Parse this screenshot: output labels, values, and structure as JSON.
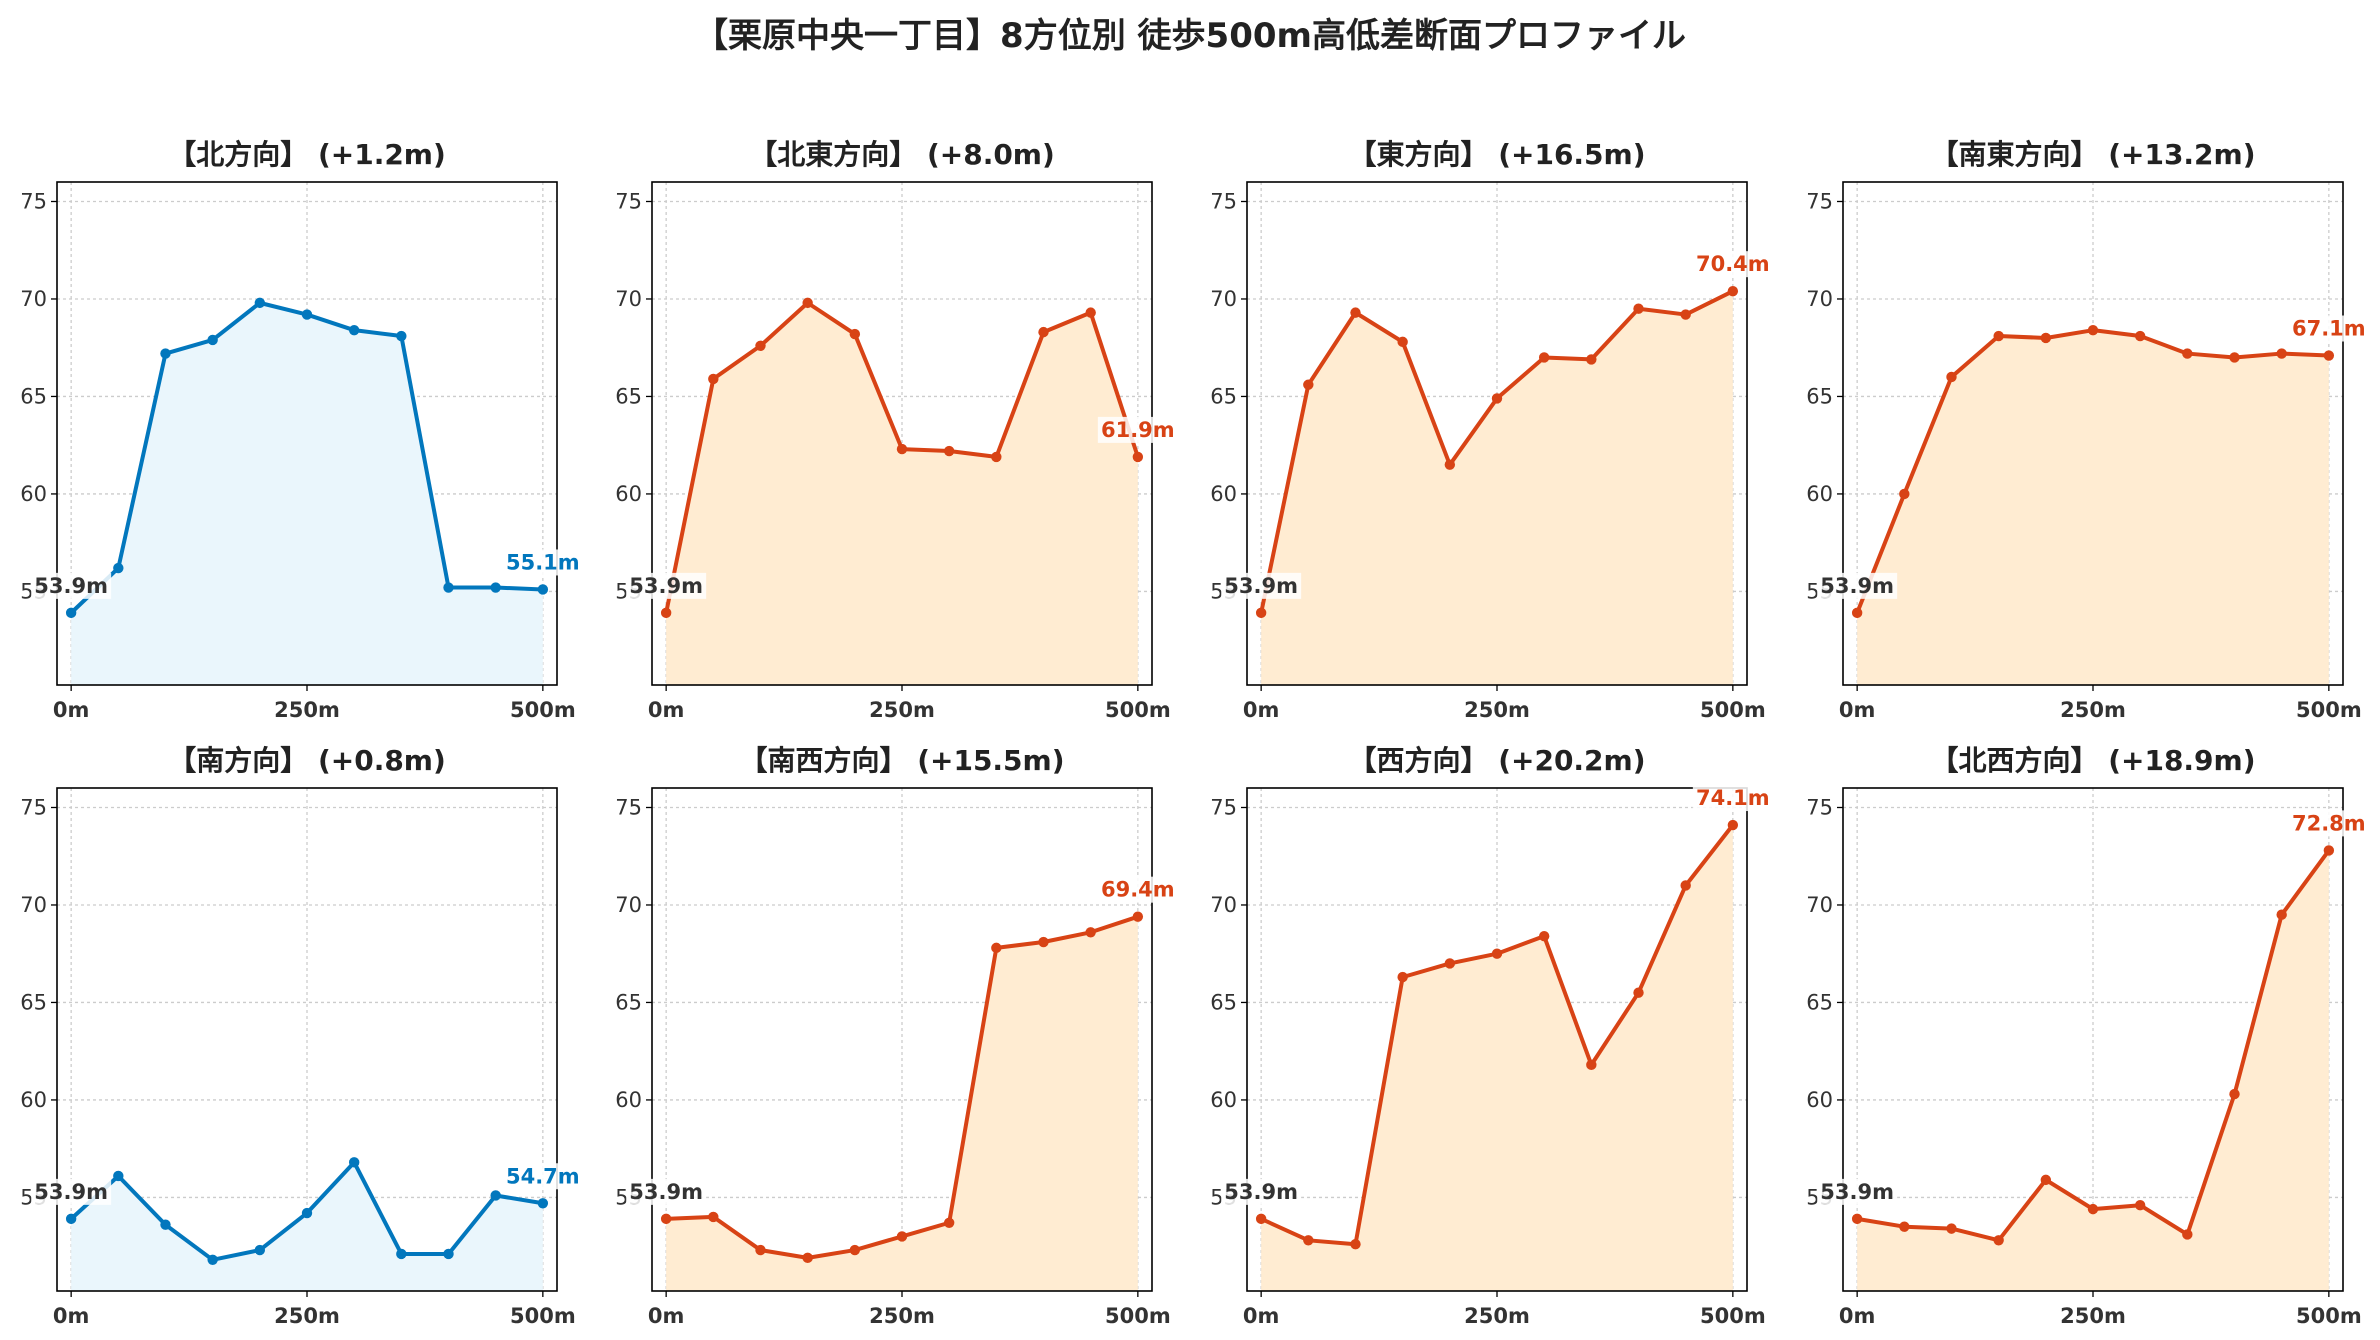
{
  "title": "【栗原中央一丁目】8方位別 徒歩500m高低差断面プロファイル",
  "colors": {
    "up": "#d84315",
    "up_fill": "#ffecd2",
    "flat": "#0277bd",
    "flat_fill": "#eaf6fc",
    "start": "#333333"
  },
  "chart_data": [
    {
      "type": "area",
      "title": "【北方向】 (+1.2m)",
      "color_key": "flat",
      "x": [
        0,
        50,
        100,
        150,
        200,
        250,
        300,
        350,
        400,
        450,
        500
      ],
      "y": [
        53.9,
        56.2,
        67.2,
        67.9,
        69.8,
        69.2,
        68.4,
        68.1,
        55.2,
        55.2,
        55.1
      ],
      "start_label": "53.9m",
      "end_label": "55.1m",
      "xticks": [
        "0m",
        "250m",
        "500m"
      ],
      "yticks": [
        55,
        60,
        65,
        70,
        75
      ],
      "ylim": [
        50.2,
        76
      ],
      "xlim": [
        -15,
        515
      ],
      "grid": true
    },
    {
      "type": "area",
      "title": "【北東方向】 (+8.0m)",
      "color_key": "up",
      "x": [
        0,
        50,
        100,
        150,
        200,
        250,
        300,
        350,
        400,
        450,
        500
      ],
      "y": [
        53.9,
        65.9,
        67.6,
        69.8,
        68.2,
        62.3,
        62.2,
        61.9,
        68.3,
        69.3,
        61.9
      ],
      "start_label": "53.9m",
      "end_label": "61.9m",
      "xticks": [
        "0m",
        "250m",
        "500m"
      ],
      "yticks": [
        55,
        60,
        65,
        70,
        75
      ],
      "ylim": [
        50.2,
        76
      ],
      "xlim": [
        -15,
        515
      ],
      "grid": true
    },
    {
      "type": "area",
      "title": "【東方向】 (+16.5m)",
      "color_key": "up",
      "x": [
        0,
        50,
        100,
        150,
        200,
        250,
        300,
        350,
        400,
        450,
        500
      ],
      "y": [
        53.9,
        65.6,
        69.3,
        67.8,
        61.5,
        64.9,
        67.0,
        66.9,
        69.5,
        69.2,
        70.4
      ],
      "start_label": "53.9m",
      "end_label": "70.4m",
      "xticks": [
        "0m",
        "250m",
        "500m"
      ],
      "yticks": [
        55,
        60,
        65,
        70,
        75
      ],
      "ylim": [
        50.2,
        76
      ],
      "xlim": [
        -15,
        515
      ],
      "grid": true
    },
    {
      "type": "area",
      "title": "【南東方向】 (+13.2m)",
      "color_key": "up",
      "x": [
        0,
        50,
        100,
        150,
        200,
        250,
        300,
        350,
        400,
        450,
        500
      ],
      "y": [
        53.9,
        60.0,
        66.0,
        68.1,
        68.0,
        68.4,
        68.1,
        67.2,
        67.0,
        67.2,
        67.1
      ],
      "start_label": "53.9m",
      "end_label": "67.1m",
      "xticks": [
        "0m",
        "250m",
        "500m"
      ],
      "yticks": [
        55,
        60,
        65,
        70,
        75
      ],
      "ylim": [
        50.2,
        76
      ],
      "xlim": [
        -15,
        515
      ],
      "grid": true
    },
    {
      "type": "area",
      "title": "【南方向】 (+0.8m)",
      "color_key": "flat",
      "x": [
        0,
        50,
        100,
        150,
        200,
        250,
        300,
        350,
        400,
        450,
        500
      ],
      "y": [
        53.9,
        56.1,
        53.6,
        51.8,
        52.3,
        54.2,
        56.8,
        52.1,
        52.1,
        55.1,
        54.7
      ],
      "start_label": "53.9m",
      "end_label": "54.7m",
      "xticks": [
        "0m",
        "250m",
        "500m"
      ],
      "yticks": [
        55,
        60,
        65,
        70,
        75
      ],
      "ylim": [
        50.2,
        76
      ],
      "xlim": [
        -15,
        515
      ],
      "grid": true
    },
    {
      "type": "area",
      "title": "【南西方向】 (+15.5m)",
      "color_key": "up",
      "x": [
        0,
        50,
        100,
        150,
        200,
        250,
        300,
        350,
        400,
        450,
        500
      ],
      "y": [
        53.9,
        54.0,
        52.3,
        51.9,
        52.3,
        53.0,
        53.7,
        67.8,
        68.1,
        68.6,
        69.4
      ],
      "start_label": "53.9m",
      "end_label": "69.4m",
      "xticks": [
        "0m",
        "250m",
        "500m"
      ],
      "yticks": [
        55,
        60,
        65,
        70,
        75
      ],
      "ylim": [
        50.2,
        76
      ],
      "xlim": [
        -15,
        515
      ],
      "grid": true
    },
    {
      "type": "area",
      "title": "【西方向】 (+20.2m)",
      "color_key": "up",
      "x": [
        0,
        50,
        100,
        150,
        200,
        250,
        300,
        350,
        400,
        450,
        500
      ],
      "y": [
        53.9,
        52.8,
        52.6,
        66.3,
        67.0,
        67.5,
        68.4,
        61.8,
        65.5,
        71.0,
        74.1
      ],
      "start_label": "53.9m",
      "end_label": "74.1m",
      "xticks": [
        "0m",
        "250m",
        "500m"
      ],
      "yticks": [
        55,
        60,
        65,
        70,
        75
      ],
      "ylim": [
        50.2,
        76
      ],
      "xlim": [
        -15,
        515
      ],
      "grid": true
    },
    {
      "type": "area",
      "title": "【北西方向】 (+18.9m)",
      "color_key": "up",
      "x": [
        0,
        50,
        100,
        150,
        200,
        250,
        300,
        350,
        400,
        450,
        500
      ],
      "y": [
        53.9,
        53.5,
        53.4,
        52.8,
        55.9,
        54.4,
        54.6,
        53.1,
        60.3,
        69.5,
        72.8
      ],
      "start_label": "53.9m",
      "end_label": "72.8m",
      "xticks": [
        "0m",
        "250m",
        "500m"
      ],
      "yticks": [
        55,
        60,
        65,
        70,
        75
      ],
      "ylim": [
        50.2,
        76
      ],
      "xlim": [
        -15,
        515
      ],
      "grid": true
    }
  ]
}
